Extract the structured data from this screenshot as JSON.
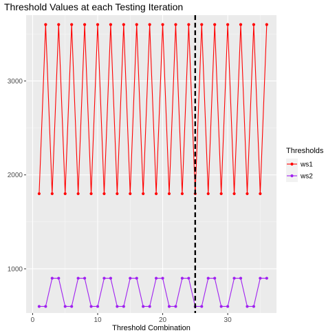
{
  "chart_data": {
    "type": "line",
    "title": "Threshold Values at each Testing Iteration",
    "xlabel": "Threshold Combination",
    "ylabel": "",
    "xlim": [
      -1,
      37.5
    ],
    "ylim": [
      530,
      3700
    ],
    "x_ticks": [
      0,
      10,
      20,
      30
    ],
    "x_tick_labels": [
      "0",
      "10",
      "20",
      "30"
    ],
    "y_ticks": [
      1000,
      2000,
      3000
    ],
    "y_tick_labels": [
      "1000",
      "2000",
      "3000"
    ],
    "grid": true,
    "legend": {
      "title": "Thresholds",
      "position": "right"
    },
    "vline": {
      "x": 25,
      "style": "dashed",
      "color": "#000000"
    },
    "x": [
      1,
      2,
      3,
      4,
      5,
      6,
      7,
      8,
      9,
      10,
      11,
      12,
      13,
      14,
      15,
      16,
      17,
      18,
      19,
      20,
      21,
      22,
      23,
      24,
      25,
      26,
      27,
      28,
      29,
      30,
      31,
      32,
      33,
      34,
      35,
      36
    ],
    "series": [
      {
        "name": "ws1",
        "color": "#ff0000",
        "values": [
          1800,
          3600,
          1800,
          3600,
          1800,
          3600,
          1800,
          3600,
          1800,
          3600,
          1800,
          3600,
          1800,
          3600,
          1800,
          3600,
          1800,
          3600,
          1800,
          3600,
          1800,
          3600,
          1800,
          3600,
          1800,
          3600,
          1800,
          3600,
          1800,
          3600,
          1800,
          3600,
          1800,
          3600,
          1800,
          3600
        ]
      },
      {
        "name": "ws2",
        "color": "#a020f0",
        "values": [
          600,
          600,
          900,
          900,
          600,
          600,
          900,
          900,
          600,
          600,
          900,
          900,
          600,
          600,
          900,
          900,
          600,
          600,
          900,
          900,
          600,
          600,
          900,
          900,
          600,
          600,
          900,
          900,
          600,
          600,
          900,
          900,
          600,
          600,
          900,
          900
        ]
      }
    ]
  }
}
